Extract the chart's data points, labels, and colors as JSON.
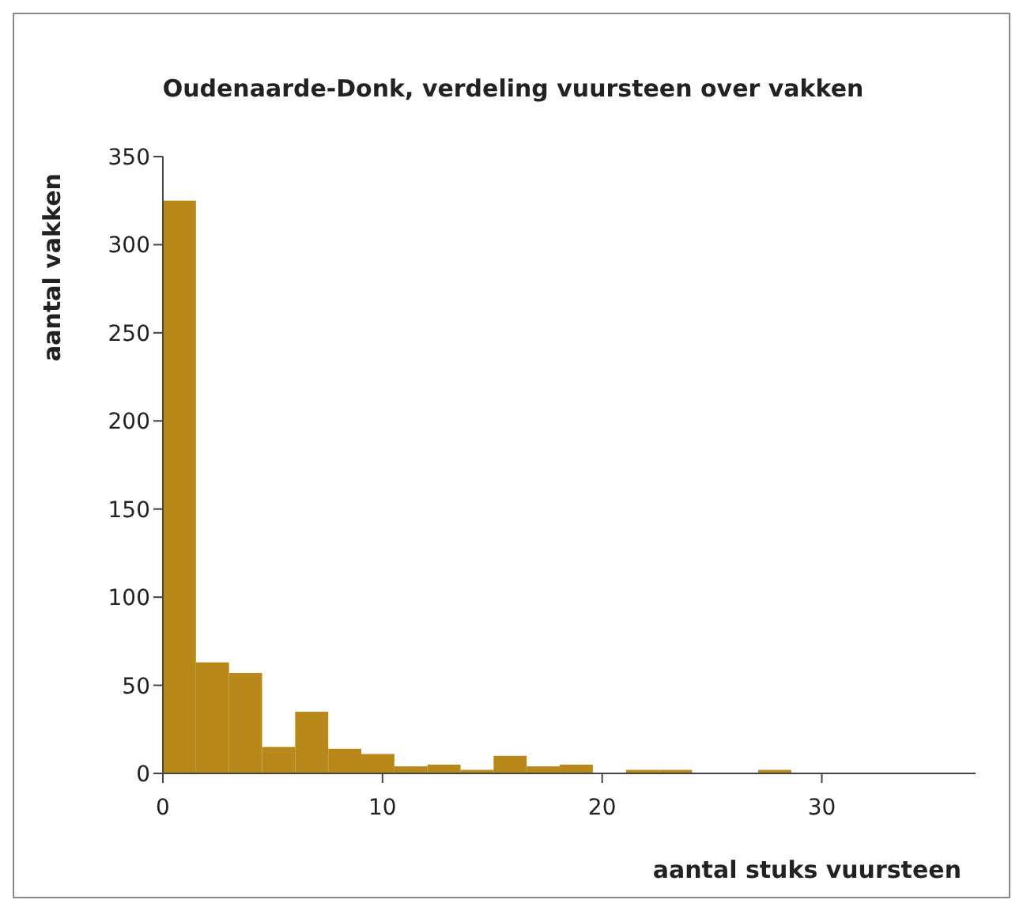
{
  "chart_data": {
    "type": "histogram",
    "title": "Oudenaarde-Donk, verdeling vuursteen over vakken",
    "xlabel": "aantal stuks vuursteen",
    "ylabel": "aantal vakken",
    "bins": [
      0,
      1.5,
      3,
      4.5,
      6,
      7.5,
      9,
      10.5,
      12,
      13.5,
      15,
      16.5,
      18,
      19.5,
      21,
      22.5,
      24,
      25.5,
      27,
      28.5
    ],
    "values": [
      325,
      63,
      57,
      15,
      35,
      14,
      11,
      4,
      5,
      2,
      10,
      4,
      5,
      0,
      2,
      2,
      0,
      0,
      2
    ],
    "color": "#b8891a",
    "xlim": [
      0,
      37
    ],
    "xticks": [
      0,
      10,
      20,
      30
    ],
    "ylim": [
      0,
      350
    ],
    "yticks": [
      0,
      50,
      100,
      150,
      200,
      250,
      300,
      350
    ],
    "grid": false
  }
}
